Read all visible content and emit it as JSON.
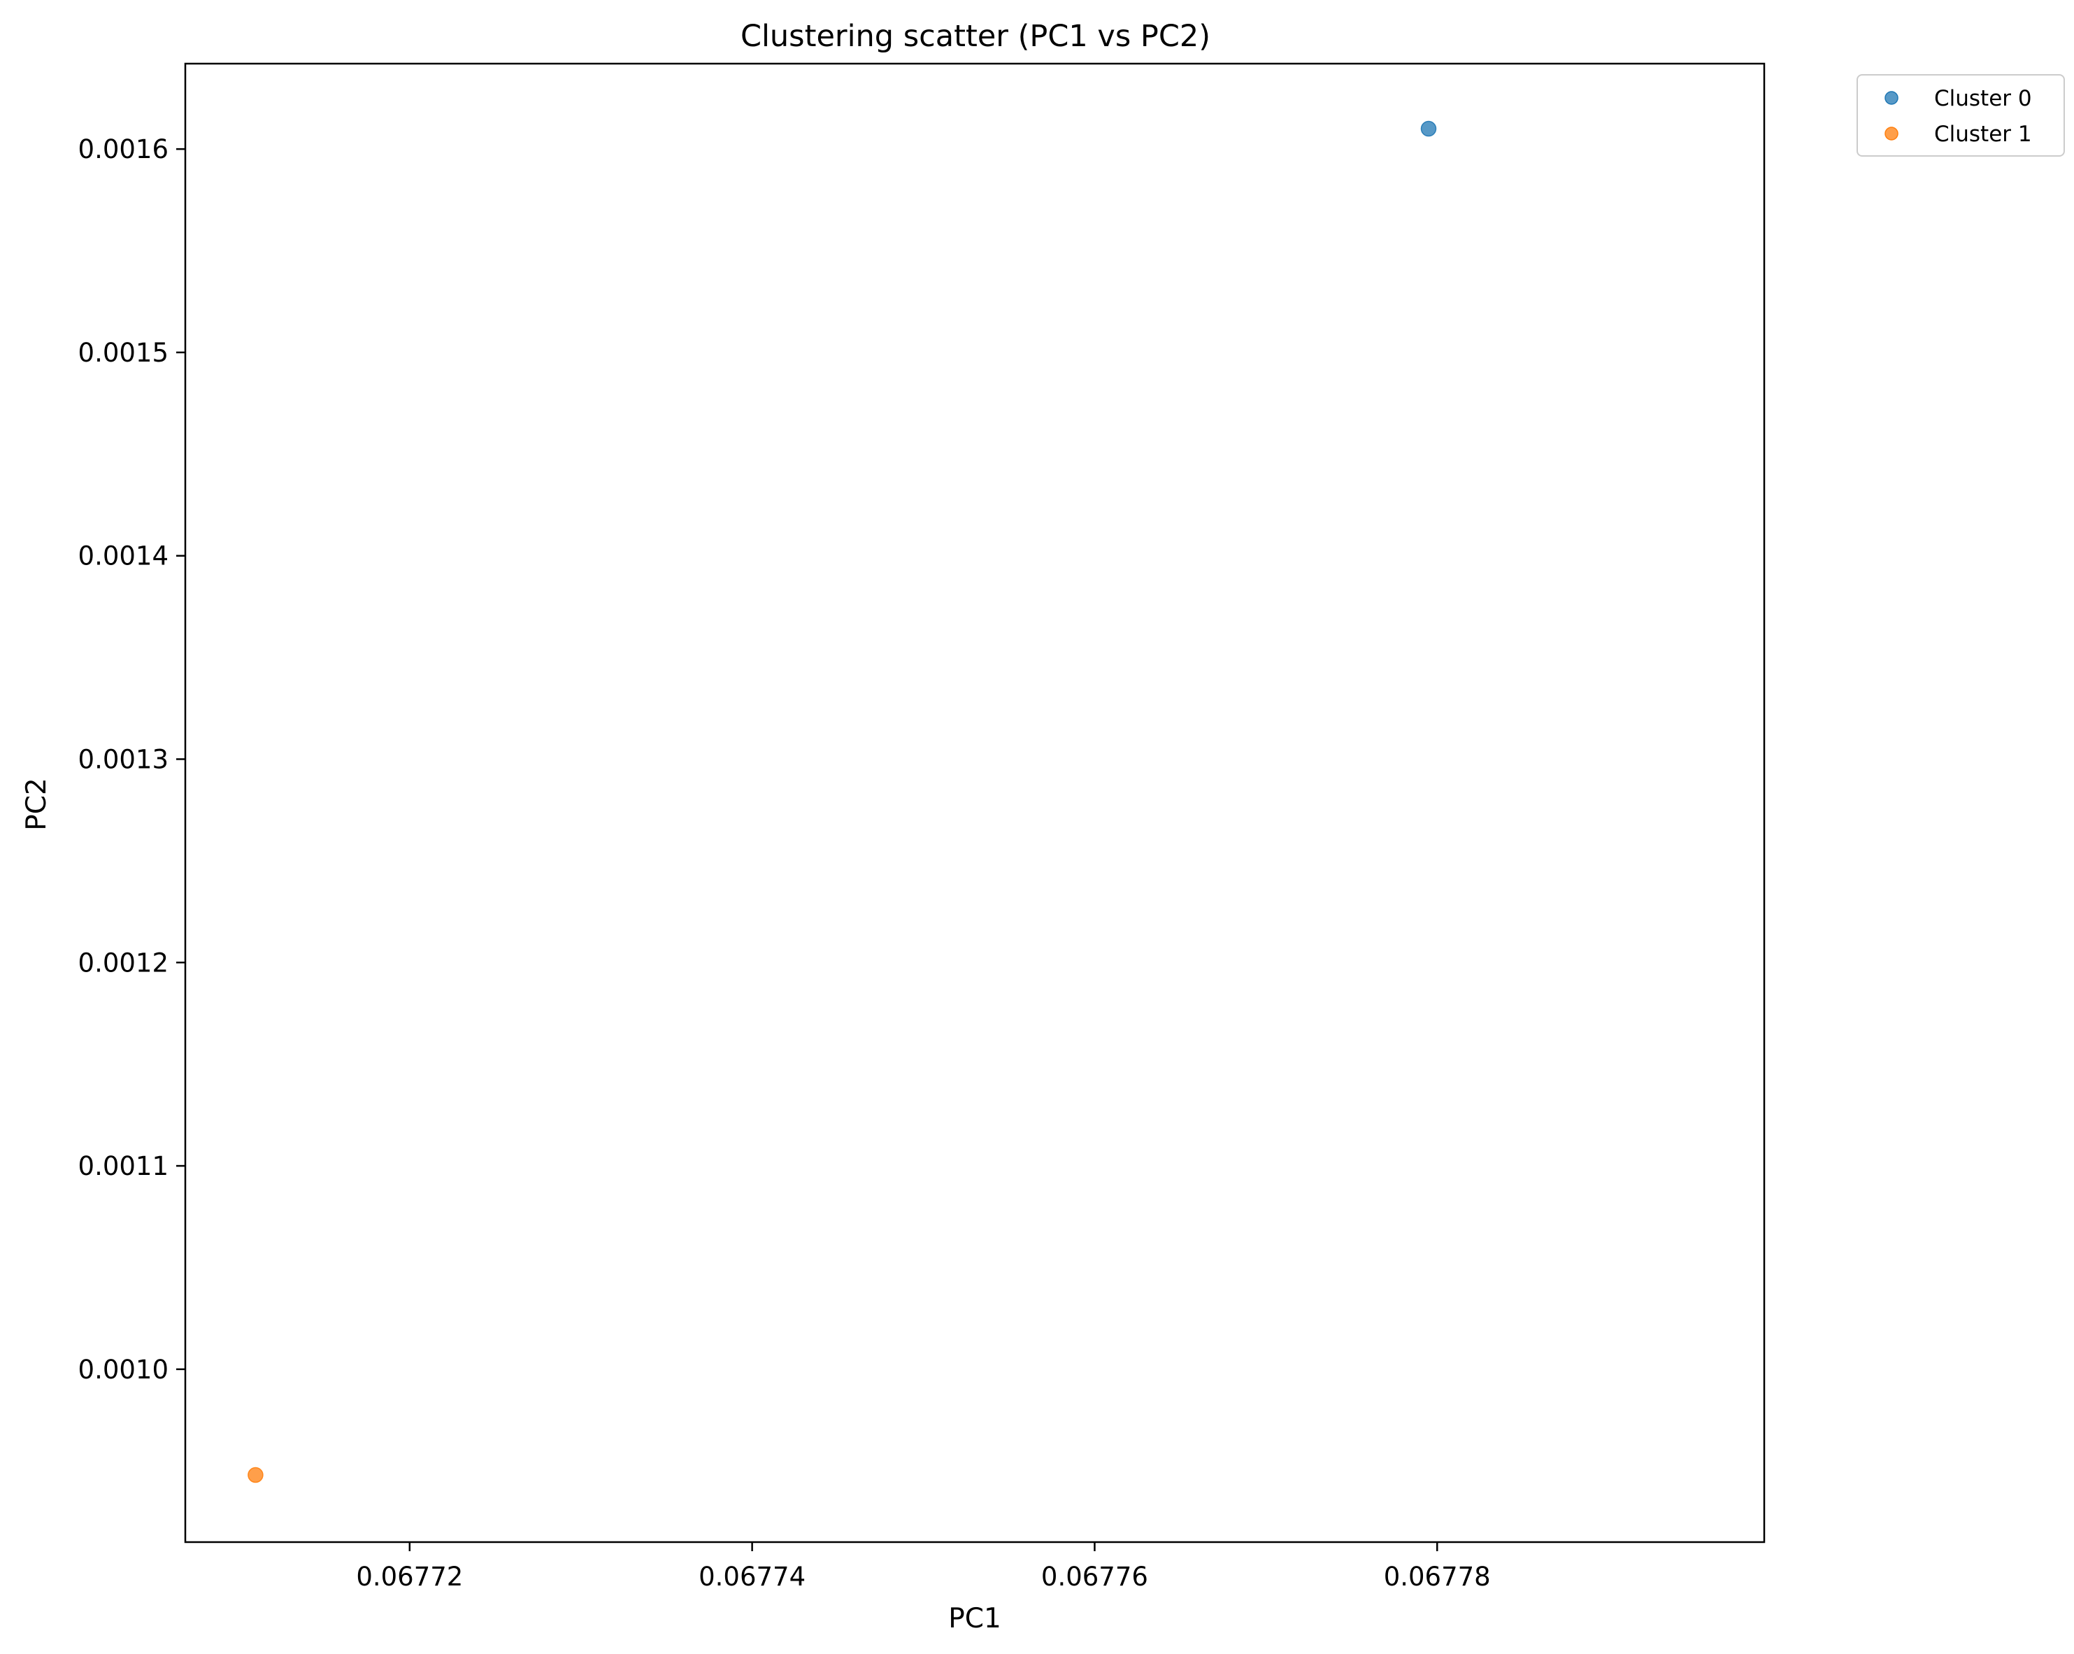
{
  "chart_data": {
    "type": "scatter",
    "title": "Clustering scatter (PC1 vs PC2)",
    "xlabel": "PC1",
    "ylabel": "PC2",
    "xlim": [
      0.0677069,
      0.0677991
    ],
    "ylim": [
      0.000915,
      0.001642
    ],
    "x_ticks": [
      0.06772,
      0.06774,
      0.06776,
      0.06778
    ],
    "x_tick_labels": [
      "0.06772",
      "0.06774",
      "0.06776",
      "0.06778"
    ],
    "y_ticks": [
      0.001,
      0.0011,
      0.0012,
      0.0013,
      0.0014,
      0.0015,
      0.0016
    ],
    "y_tick_labels": [
      "0.0010",
      "0.0011",
      "0.0012",
      "0.0013",
      "0.0014",
      "0.0015",
      "0.0016"
    ],
    "grid": false,
    "legend_position": "outside-top-right",
    "series": [
      {
        "name": "Cluster 0",
        "color": "#1f77b4",
        "points": [
          [
            0.0677795,
            0.00161
          ]
        ]
      },
      {
        "name": "Cluster 1",
        "color": "#ff7f0e",
        "points": [
          [
            0.067711,
            0.000948
          ]
        ]
      }
    ]
  }
}
